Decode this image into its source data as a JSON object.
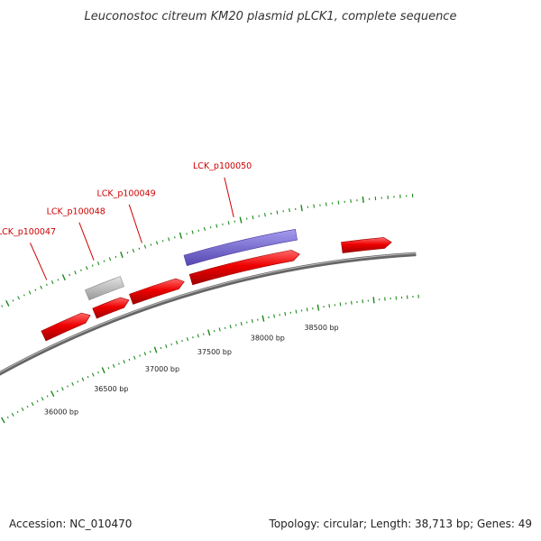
{
  "title": "Leuconostoc citreum KM20 plasmid pLCK1, complete sequence",
  "footer": {
    "accession": "Accession: NC_010470",
    "summary": "Topology: circular; Length: 38,713 bp; Genes: 49"
  },
  "chart_data": {
    "type": "circular-genome-map",
    "sequence_length_bp": 38713,
    "tick_labels": [
      {
        "bp": 36000,
        "label": "36000 bp"
      },
      {
        "bp": 36500,
        "label": "36500 bp"
      },
      {
        "bp": 37000,
        "label": "37000 bp"
      },
      {
        "bp": 37500,
        "label": "37500 bp"
      },
      {
        "bp": 38000,
        "label": "38000 bp"
      },
      {
        "bp": 38500,
        "label": "38500 bp"
      }
    ],
    "genes": [
      {
        "name": "LCK_p100047",
        "start_bp": 36150,
        "end_bp": 36580,
        "strand": "forward",
        "track": "cds",
        "color": "#ee0000",
        "labeled": true
      },
      {
        "name": "LCK_p100048",
        "start_bp": 36620,
        "end_bp": 36930,
        "strand": "forward",
        "track": "cds",
        "color": "#ee0000",
        "labeled": true
      },
      {
        "name": "",
        "start_bp": 36620,
        "end_bp": 36930,
        "strand": "forward",
        "track": "outer",
        "color": "#bbbbbb",
        "labeled": false
      },
      {
        "name": "LCK_p100049",
        "start_bp": 36950,
        "end_bp": 37420,
        "strand": "forward",
        "track": "cds",
        "color": "#ee0000",
        "labeled": true
      },
      {
        "name": "LCK_p100050",
        "start_bp": 37480,
        "end_bp": 38420,
        "strand": "forward",
        "track": "cds",
        "color": "#ee0000",
        "labeled": true
      },
      {
        "name": "",
        "start_bp": 37480,
        "end_bp": 38420,
        "strand": "forward",
        "track": "outer",
        "color": "#7766cc",
        "labeled": false
      },
      {
        "name": "",
        "start_bp": 38780,
        "end_bp": 39200,
        "strand": "forward",
        "track": "cds",
        "color": "#ee0000",
        "labeled": false
      }
    ]
  }
}
